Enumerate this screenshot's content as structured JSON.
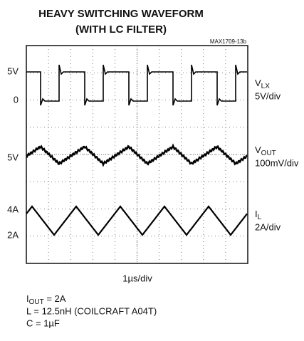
{
  "header": {
    "title_line1": "HEAVY SWITCHING WAVEFORM",
    "title_line2": "(WITH LC FILTER)",
    "figure_id": "MAX1709-13b"
  },
  "left_labels": [
    "5V",
    "0",
    "5V",
    "4A",
    "2A"
  ],
  "channels": [
    {
      "name": "V",
      "sub": "LX",
      "scale": "5V/div"
    },
    {
      "name": "V",
      "sub": "OUT",
      "scale": "100mV/div"
    },
    {
      "name": "I",
      "sub": "L",
      "scale": "2A/div"
    }
  ],
  "time_scale": "1µs/div",
  "notes": [
    {
      "name": "I",
      "sub": "OUT",
      "rest": " = 2A"
    },
    {
      "text": "L = 12.5nH (COILCRAFT A04T)"
    },
    {
      "text": "C = 1µF"
    }
  ]
}
